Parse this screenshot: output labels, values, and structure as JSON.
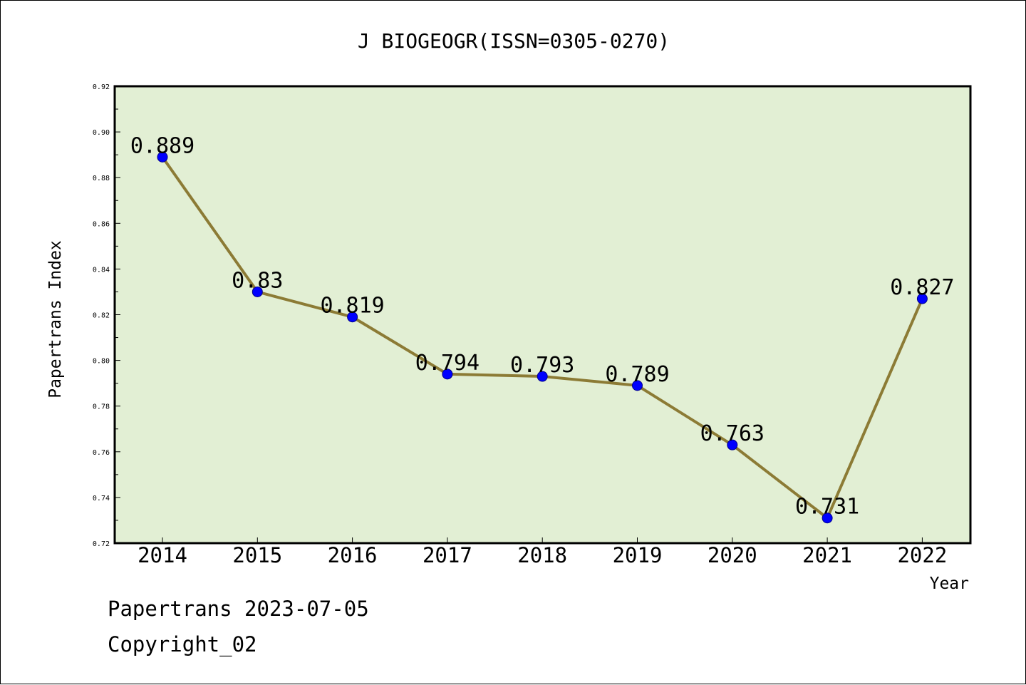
{
  "chart_data": {
    "type": "line",
    "title": "J BIOGEOGR(ISSN=0305-0270)",
    "xlabel": "Year",
    "ylabel": "Papertrans Index",
    "categories": [
      "2014",
      "2015",
      "2016",
      "2017",
      "2018",
      "2019",
      "2020",
      "2021",
      "2022"
    ],
    "series": [
      {
        "values": [
          0.889,
          0.83,
          0.819,
          0.794,
          0.793,
          0.789,
          0.763,
          0.731,
          0.827
        ],
        "labels": [
          "0.889",
          "0.83",
          "0.819",
          "0.794",
          "0.793",
          "0.789",
          "0.763",
          "0.731",
          "0.827"
        ]
      }
    ],
    "ylim": [
      0.72,
      0.92
    ],
    "yticks": [
      "0.72",
      "0.74",
      "0.76",
      "0.78",
      "0.80",
      "0.82",
      "0.84",
      "0.86",
      "0.88",
      "0.90",
      "0.92"
    ],
    "grid": false,
    "colors": {
      "plot_background": "#e2efd4",
      "line": "#8c7b35",
      "marker": "#0000ff"
    }
  },
  "footer": {
    "date_line": "Papertrans 2023-07-05",
    "copyright": "Copyright_02"
  }
}
